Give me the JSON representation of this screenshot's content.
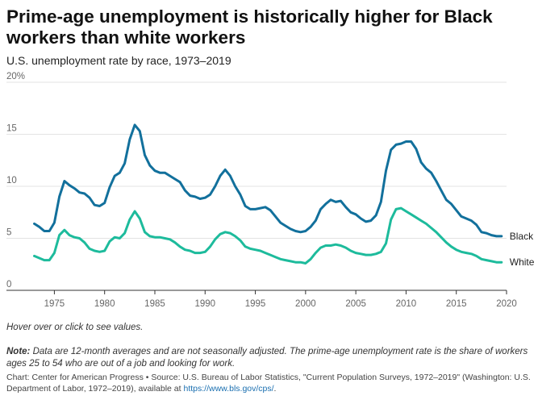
{
  "header": {
    "title": "Prime-age unemployment is historically higher for Black workers than white workers",
    "subtitle": "U.S. unemployment rate by race, 1973–2019"
  },
  "hint": "Hover over or click to see values.",
  "note": {
    "label": "Note:",
    "text": " Data are 12-month averages and are not seasonally adjusted. The prime-age unemployment rate is the share of workers ages 25 to 54 who are out of a job and looking for work."
  },
  "source": {
    "text": "Chart: Center for American Progress • Source: U.S. Bureau of Labor Statistics, \"Current Population Surveys, 1972–2019\" (Washington: U.S. Department of Labor, 1972–2019), available at ",
    "link": "https://www.bls.gov/cps/",
    "end": "."
  },
  "chart_data": {
    "type": "line",
    "title": "Prime-age unemployment is historically higher for Black workers than white workers",
    "subtitle": "U.S. unemployment rate by race, 1973–2019",
    "xlabel": "",
    "ylabel": "",
    "xlim": [
      1972.8,
      2020.0
    ],
    "ylim": [
      0,
      20
    ],
    "y_ticks": [
      0,
      5,
      10,
      15,
      20
    ],
    "y_tick_labels": [
      "0",
      "5",
      "10",
      "15",
      "20%"
    ],
    "x_ticks": [
      1975,
      1980,
      1985,
      1990,
      1995,
      2000,
      2005,
      2010,
      2015,
      2020
    ],
    "grid": true,
    "legend": "direct labels at line ends",
    "colors": {
      "Black": "#12709c",
      "White": "#1dbb9c"
    },
    "series": [
      {
        "name": "Black",
        "x": [
          1973,
          1973.5,
          1974,
          1974.5,
          1975,
          1975.5,
          1976,
          1976.5,
          1977,
          1977.5,
          1978,
          1978.5,
          1979,
          1979.5,
          1980,
          1980.5,
          1981,
          1981.5,
          1982,
          1982.5,
          1983,
          1983.5,
          1984,
          1984.5,
          1985,
          1985.5,
          1986,
          1986.5,
          1987,
          1987.5,
          1988,
          1988.5,
          1989,
          1989.5,
          1990,
          1990.5,
          1991,
          1991.5,
          1992,
          1992.5,
          1993,
          1993.5,
          1994,
          1994.5,
          1995,
          1995.5,
          1996,
          1996.5,
          1997,
          1997.5,
          1998,
          1998.5,
          1999,
          1999.5,
          2000,
          2000.5,
          2001,
          2001.5,
          2002,
          2002.5,
          2003,
          2003.5,
          2004,
          2004.5,
          2005,
          2005.5,
          2006,
          2006.5,
          2007,
          2007.5,
          2008,
          2008.5,
          2009,
          2009.5,
          2010,
          2010.5,
          2011,
          2011.5,
          2012,
          2012.5,
          2013,
          2013.5,
          2014,
          2014.5,
          2015,
          2015.5,
          2016,
          2016.5,
          2017,
          2017.5,
          2018,
          2018.5,
          2019,
          2019.5
        ],
        "values": [
          6.4,
          6.1,
          5.7,
          5.7,
          6.5,
          9.0,
          10.5,
          10.1,
          9.8,
          9.4,
          9.3,
          8.9,
          8.2,
          8.1,
          8.4,
          9.9,
          11.0,
          11.3,
          12.2,
          14.5,
          15.9,
          15.3,
          13.0,
          12.0,
          11.5,
          11.3,
          11.3,
          11.0,
          10.7,
          10.4,
          9.6,
          9.1,
          9.0,
          8.8,
          8.9,
          9.2,
          10.0,
          11.0,
          11.6,
          11.0,
          10.0,
          9.2,
          8.1,
          7.8,
          7.8,
          7.9,
          8.0,
          7.7,
          7.1,
          6.5,
          6.2,
          5.9,
          5.7,
          5.6,
          5.7,
          6.1,
          6.7,
          7.8,
          8.3,
          8.7,
          8.5,
          8.6,
          8.0,
          7.5,
          7.3,
          6.9,
          6.6,
          6.7,
          7.2,
          8.5,
          11.5,
          13.5,
          14.0,
          14.1,
          14.3,
          14.3,
          13.6,
          12.3,
          11.7,
          11.3,
          10.5,
          9.6,
          8.7,
          8.3,
          7.7,
          7.1,
          6.9,
          6.7,
          6.3,
          5.6,
          5.5,
          5.3,
          5.2,
          5.2
        ]
      },
      {
        "name": "White",
        "x": [
          1973,
          1973.5,
          1974,
          1974.5,
          1975,
          1975.5,
          1976,
          1976.5,
          1977,
          1977.5,
          1978,
          1978.5,
          1979,
          1979.5,
          1980,
          1980.5,
          1981,
          1981.5,
          1982,
          1982.5,
          1983,
          1983.5,
          1984,
          1984.5,
          1985,
          1985.5,
          1986,
          1986.5,
          1987,
          1987.5,
          1988,
          1988.5,
          1989,
          1989.5,
          1990,
          1990.5,
          1991,
          1991.5,
          1992,
          1992.5,
          1993,
          1993.5,
          1994,
          1994.5,
          1995,
          1995.5,
          1996,
          1996.5,
          1997,
          1997.5,
          1998,
          1998.5,
          1999,
          1999.5,
          2000,
          2000.5,
          2001,
          2001.5,
          2002,
          2002.5,
          2003,
          2003.5,
          2004,
          2004.5,
          2005,
          2005.5,
          2006,
          2006.5,
          2007,
          2007.5,
          2008,
          2008.5,
          2009,
          2009.5,
          2010,
          2010.5,
          2011,
          2011.5,
          2012,
          2012.5,
          2013,
          2013.5,
          2014,
          2014.5,
          2015,
          2015.5,
          2016,
          2016.5,
          2017,
          2017.5,
          2018,
          2018.5,
          2019,
          2019.5
        ],
        "values": [
          3.3,
          3.1,
          2.9,
          2.9,
          3.6,
          5.3,
          5.8,
          5.3,
          5.1,
          5.0,
          4.6,
          4.0,
          3.8,
          3.7,
          3.8,
          4.7,
          5.1,
          5.0,
          5.5,
          6.8,
          7.6,
          6.9,
          5.6,
          5.2,
          5.1,
          5.1,
          5.0,
          4.9,
          4.6,
          4.2,
          3.9,
          3.8,
          3.6,
          3.6,
          3.7,
          4.2,
          4.9,
          5.4,
          5.6,
          5.5,
          5.2,
          4.8,
          4.2,
          4.0,
          3.9,
          3.8,
          3.6,
          3.4,
          3.2,
          3.0,
          2.9,
          2.8,
          2.7,
          2.7,
          2.6,
          3.0,
          3.6,
          4.1,
          4.3,
          4.3,
          4.4,
          4.3,
          4.1,
          3.8,
          3.6,
          3.5,
          3.4,
          3.4,
          3.5,
          3.7,
          4.5,
          6.8,
          7.8,
          7.9,
          7.6,
          7.3,
          7.0,
          6.7,
          6.4,
          6.0,
          5.6,
          5.1,
          4.6,
          4.2,
          3.9,
          3.7,
          3.6,
          3.5,
          3.3,
          3.0,
          2.9,
          2.8,
          2.7,
          2.7
        ]
      }
    ]
  }
}
